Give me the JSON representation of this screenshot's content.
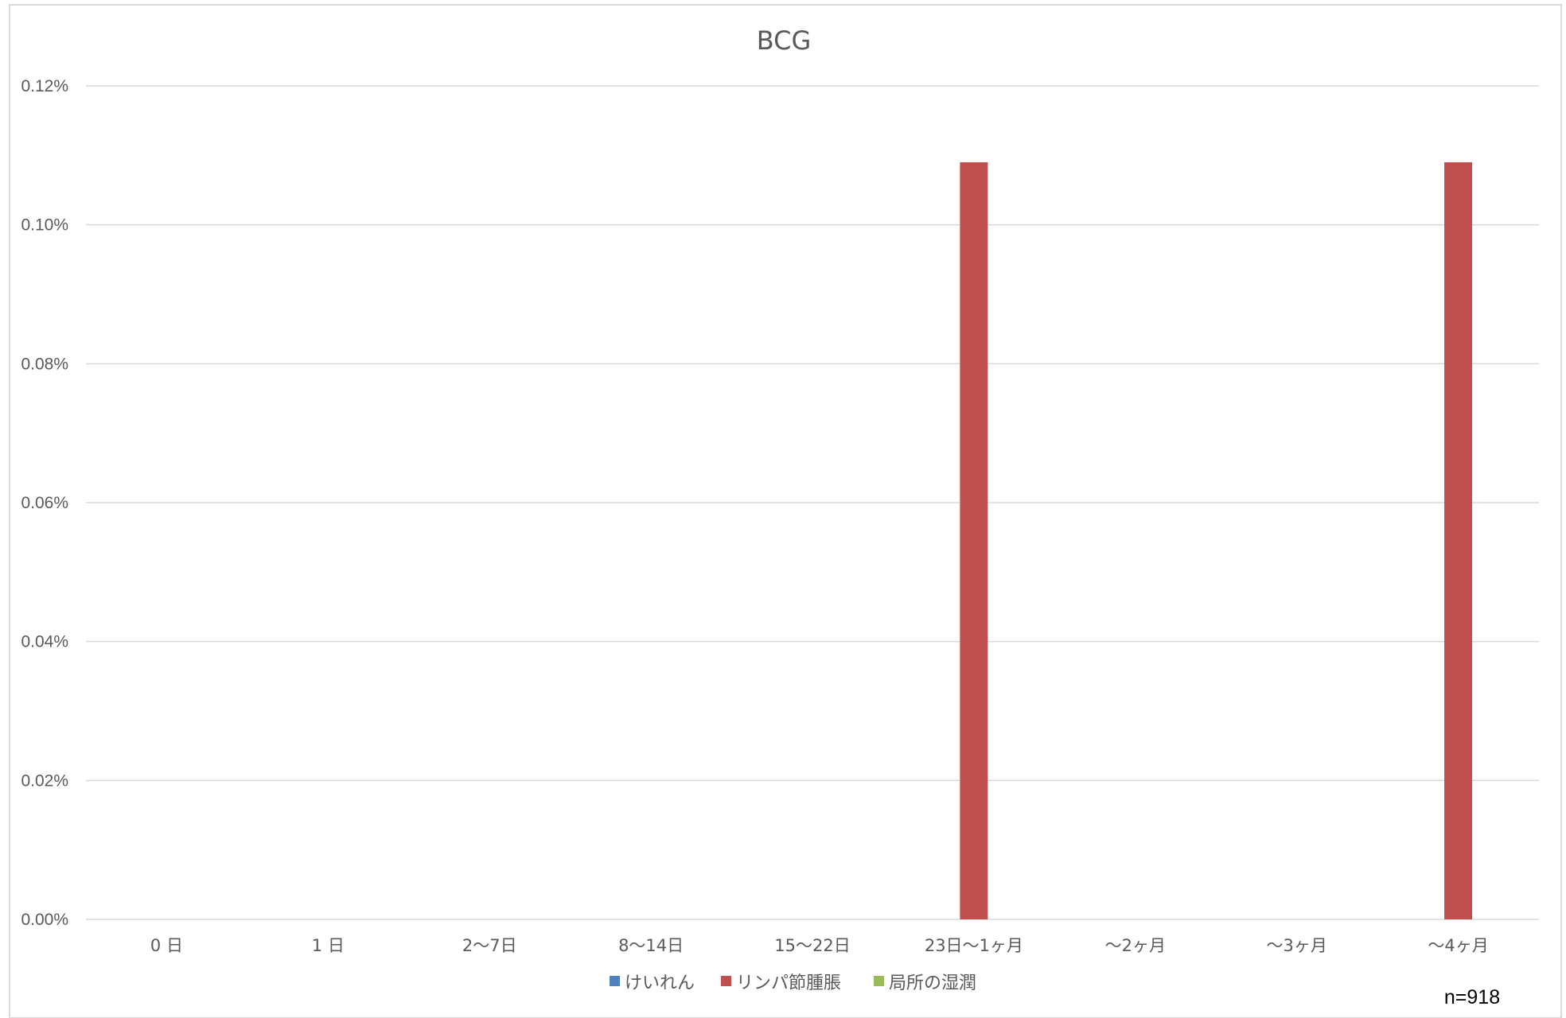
{
  "chart_data": {
    "type": "bar",
    "title": "BCG",
    "xlabel": "",
    "ylabel": "",
    "categories": [
      "0 日",
      "1 日",
      "2〜7日",
      "8〜14日",
      "15〜22日",
      "23日〜1ヶ月",
      "〜2ヶ月",
      "〜3ヶ月",
      "〜4ヶ月"
    ],
    "series": [
      {
        "name": "けいれん",
        "color": "#4F81BD",
        "values": [
          0,
          0,
          0,
          0,
          0,
          0,
          0,
          0,
          0
        ]
      },
      {
        "name": "リンパ節腫脹",
        "color": "#C0504D",
        "values": [
          0,
          0,
          0,
          0,
          0,
          0.109,
          0,
          0,
          0.109
        ]
      },
      {
        "name": "局所の湿潤",
        "color": "#9BBB59",
        "values": [
          0,
          0,
          0,
          0,
          0,
          0,
          0,
          0,
          0
        ]
      }
    ],
    "ylim": [
      0,
      0.12
    ],
    "yticks": [
      "0.00%",
      "0.02%",
      "0.04%",
      "0.06%",
      "0.08%",
      "0.10%",
      "0.12%"
    ],
    "ytick_values": [
      0,
      0.02,
      0.04,
      0.06,
      0.08,
      0.1,
      0.12
    ],
    "y_unit": "percent",
    "grid": true,
    "legend_position": "bottom"
  },
  "note": "n=918",
  "colors": {
    "text": "#595959",
    "gridline": "#D9D9D9",
    "border": "#D9D9D9"
  }
}
